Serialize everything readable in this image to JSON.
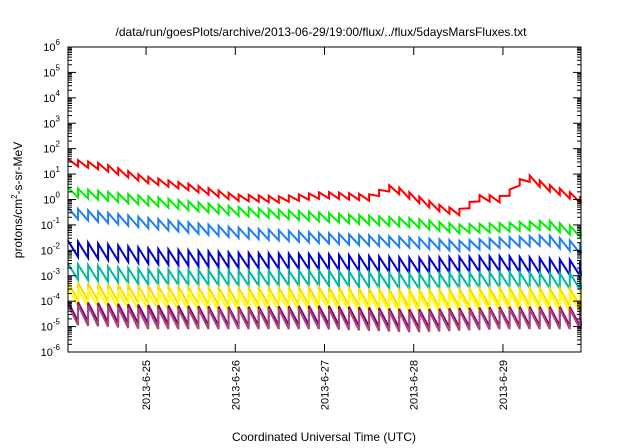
{
  "chart_data": {
    "type": "line",
    "title": "/data/run/goesPlots/archive/2013-06-29/19:00/flux/../flux/5daysMarsFluxes.txt",
    "xlabel": "Coordinated Universal Time (UTC)",
    "ylabel_parts": [
      "protons/cm",
      "2",
      "-s-sr-MeV"
    ],
    "xlim": [
      "2013-06-24T03:00",
      "2013-06-29T21:00"
    ],
    "ylim": [
      1e-06,
      1000000.0
    ],
    "yscale": "log",
    "grid": false,
    "x_ticks": [
      "2013-6-25",
      "2013-6-26",
      "2013-6-27",
      "2013-6-28",
      "2013-6-29"
    ],
    "y_ticks": [
      {
        "base": "10",
        "exp": "-6"
      },
      {
        "base": "10",
        "exp": "-5"
      },
      {
        "base": "10",
        "exp": "-4"
      },
      {
        "base": "10",
        "exp": "-3"
      },
      {
        "base": "10",
        "exp": "-2"
      },
      {
        "base": "10",
        "exp": "-1"
      },
      {
        "base": "10",
        "exp": "0"
      },
      {
        "base": "10",
        "exp": "1"
      },
      {
        "base": "10",
        "exp": "2"
      },
      {
        "base": "10",
        "exp": "3"
      },
      {
        "base": "10",
        "exp": "4"
      },
      {
        "base": "10",
        "exp": "5"
      },
      {
        "base": "10",
        "exp": "6"
      }
    ],
    "series": [
      {
        "color": "#ff0000",
        "sawtooth_amplitude_decades": 0.25,
        "x": [
          "2013-06-24T03:00",
          "2013-06-24T12:00",
          "2013-06-25T00:00",
          "2013-06-25T12:00",
          "2013-06-26T00:00",
          "2013-06-26T12:00",
          "2013-06-27T00:00",
          "2013-06-27T12:00",
          "2013-06-27T18:00",
          "2013-06-28T00:00",
          "2013-06-28T06:00",
          "2013-06-28T12:00",
          "2013-06-28T18:00",
          "2013-06-29T00:00",
          "2013-06-29T06:00",
          "2013-06-29T12:00",
          "2013-06-29T21:00"
        ],
        "y": [
          30,
          20,
          6,
          3,
          1.2,
          1.0,
          1.5,
          1.2,
          3.0,
          1.2,
          0.5,
          0.3,
          1.2,
          1.0,
          8.0,
          3.0,
          1.0
        ]
      },
      {
        "color": "#00ee00",
        "sawtooth_amplitude_decades": 0.35,
        "x": [
          "2013-06-24T03:00",
          "2013-06-25T00:00",
          "2013-06-26T00:00",
          "2013-06-27T00:00",
          "2013-06-28T00:00",
          "2013-06-28T12:00",
          "2013-06-29T00:00",
          "2013-06-29T12:00",
          "2013-06-29T21:00"
        ],
        "y": [
          2.0,
          0.9,
          0.35,
          0.2,
          0.12,
          0.07,
          0.08,
          0.1,
          0.05
        ]
      },
      {
        "color": "#1f7ff0",
        "sawtooth_amplitude_decades": 0.4,
        "x": [
          "2013-06-24T03:00",
          "2013-06-25T00:00",
          "2013-06-26T00:00",
          "2013-06-27T00:00",
          "2013-06-28T00:00",
          "2013-06-28T12:00",
          "2013-06-29T00:00",
          "2013-06-29T12:00",
          "2013-06-29T21:00"
        ],
        "y": [
          0.3,
          0.12,
          0.05,
          0.03,
          0.02,
          0.015,
          0.02,
          0.025,
          0.012
        ]
      },
      {
        "color": "#0000cc",
        "sawtooth_amplitude_decades": 0.6,
        "x": [
          "2013-06-24T03:00",
          "2013-06-25T00:00",
          "2013-06-26T00:00",
          "2013-06-27T00:00",
          "2013-06-28T00:00",
          "2013-06-29T00:00",
          "2013-06-29T21:00"
        ],
        "y": [
          0.012,
          0.006,
          0.004,
          0.0035,
          0.0025,
          0.003,
          0.002
        ]
      },
      {
        "color": "#00b8a0",
        "sawtooth_amplitude_decades": 0.6,
        "x": [
          "2013-06-24T03:00",
          "2013-06-25T00:00",
          "2013-06-26T00:00",
          "2013-06-27T00:00",
          "2013-06-28T00:00",
          "2013-06-29T00:00",
          "2013-06-29T21:00"
        ],
        "y": [
          0.0015,
          0.0009,
          0.0008,
          0.0008,
          0.0006,
          0.0007,
          0.0006
        ]
      },
      {
        "color": "#ffd700",
        "sawtooth_amplitude_decades": 0.7,
        "x": [
          "2013-06-24T03:00",
          "2013-06-25T00:00",
          "2013-06-26T00:00",
          "2013-06-27T00:00",
          "2013-06-28T00:00",
          "2013-06-29T00:00",
          "2013-06-29T21:00"
        ],
        "y": [
          0.00025,
          0.00018,
          0.00015,
          0.00016,
          0.00012,
          0.00015,
          0.00014
        ]
      },
      {
        "color": "#ffff00",
        "sawtooth_amplitude_decades": 0.7,
        "x": [
          "2013-06-24T03:00",
          "2013-06-25T00:00",
          "2013-06-26T00:00",
          "2013-06-27T00:00",
          "2013-06-28T00:00",
          "2013-06-29T00:00",
          "2013-06-29T21:00"
        ],
        "y": [
          0.00015,
          0.0001,
          9e-05,
          0.0001,
          8e-05,
          0.0001,
          9e-05
        ]
      },
      {
        "color": "#7f007f",
        "sawtooth_amplitude_decades": 0.75,
        "x": [
          "2013-06-24T03:00",
          "2013-06-25T00:00",
          "2013-06-26T00:00",
          "2013-06-27T00:00",
          "2013-06-28T00:00",
          "2013-06-29T00:00",
          "2013-06-29T21:00"
        ],
        "y": [
          4e-05,
          3e-05,
          2.5e-05,
          2.8e-05,
          2e-05,
          2.5e-05,
          2.5e-05
        ]
      },
      {
        "color": "#a84a78",
        "sawtooth_amplitude_decades": 0.8,
        "x": [
          "2013-06-24T03:00",
          "2013-06-25T00:00",
          "2013-06-26T00:00",
          "2013-06-27T00:00",
          "2013-06-28T00:00",
          "2013-06-29T00:00",
          "2013-06-29T21:00"
        ],
        "y": [
          3e-05,
          2e-05,
          2e-05,
          2e-05,
          1.5e-05,
          2e-05,
          2e-05
        ]
      }
    ]
  }
}
